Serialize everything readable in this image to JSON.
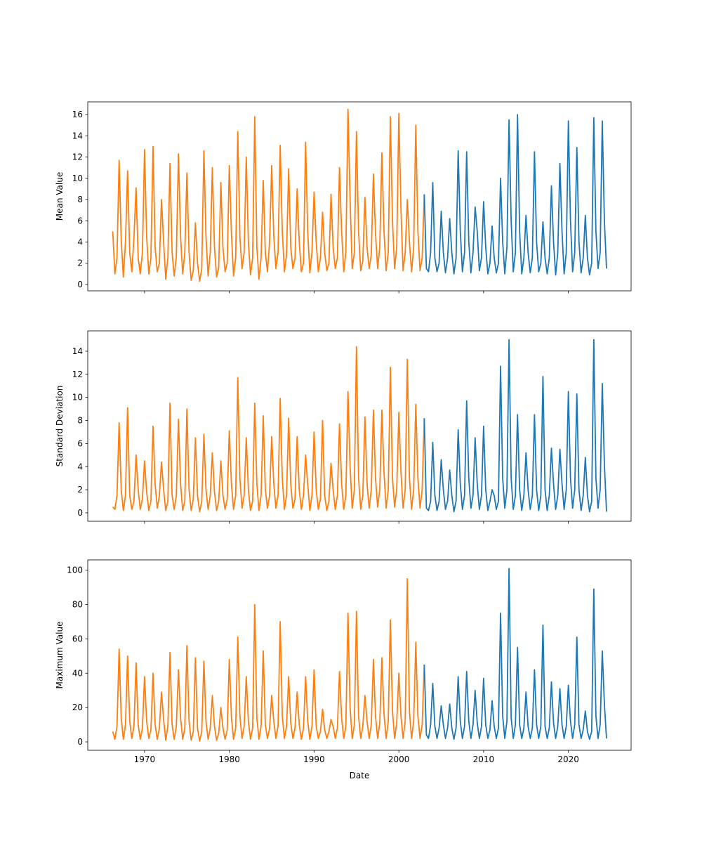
{
  "chart_data": {
    "type": "line",
    "xlabel": "Date",
    "xlim": [
      1963.3,
      2027.4
    ],
    "xticks": [
      1970,
      1980,
      1990,
      2000,
      2010,
      2020
    ],
    "xtick_labels": [
      "1970",
      "1980",
      "1990",
      "2000",
      "2010",
      "2020"
    ],
    "grid": false,
    "colors": {
      "orange": "#ff7f0e",
      "blue": "#1f77b4"
    },
    "panels": [
      {
        "ylabel": "Mean Value",
        "ylim": [
          -0.6,
          17.2
        ],
        "yticks": [
          0,
          2,
          4,
          6,
          8,
          10,
          12,
          14,
          16
        ],
        "ytick_labels": [
          "0",
          "2",
          "4",
          "6",
          "8",
          "10",
          "12",
          "14",
          "16"
        ],
        "series": [
          {
            "color": "#ff7f0e",
            "start": 1966.25,
            "end": 2003.0,
            "values": [
              5,
              1,
              2.5,
              11.7,
              4.2,
              0.7,
              4,
              10.7,
              3,
              1.2,
              4.4,
              9.1,
              2.5,
              1,
              3,
              12.7,
              4.5,
              1,
              2.5,
              13,
              3.5,
              1.2,
              2,
              8,
              4,
              0.5,
              2.5,
              11.4,
              3,
              0.8,
              2.6,
              12.3,
              4.5,
              1,
              3,
              10.5,
              3,
              0.4,
              1.3,
              5.8,
              2,
              0.3,
              1.5,
              12.6,
              4.5,
              0.8,
              3,
              11,
              3.5,
              0.7,
              1.6,
              9.6,
              3.5,
              1.2,
              2,
              11.2,
              4.8,
              0.8,
              2.5,
              14.4,
              4.5,
              1.5,
              3,
              12,
              4,
              0.9,
              2.5,
              15.8,
              3.5,
              0.5,
              2.5,
              9.8,
              3,
              1.2,
              4,
              11.2,
              4.5,
              1.5,
              3,
              13.1,
              5,
              1.2,
              2.8,
              10.9,
              3.5,
              1.5,
              2.5,
              9,
              4,
              1.2,
              2,
              13.4,
              5,
              1.1,
              3,
              8.7,
              4,
              1.2,
              2.5,
              6.8,
              3,
              1.3,
              2,
              8.5,
              3.5,
              1.5,
              2.5,
              11,
              5,
              1.2,
              3,
              16.5,
              8,
              1.5,
              3,
              14.4,
              5,
              1.3,
              2.2,
              8.2,
              3.5,
              1.5,
              2.8,
              10.4,
              4.8,
              1.5,
              3.5,
              12.4,
              5,
              1.3,
              3,
              15.8,
              6,
              1.5,
              3.5,
              16.1,
              7,
              1.3,
              3,
              8,
              4,
              1.2,
              3.5,
              15,
              5,
              1.3,
              2.5,
              8.5
            ]
          },
          {
            "color": "#1f77b4",
            "start": 2003.0,
            "end": 2024.5,
            "values": [
              8.5,
              1.5,
              1.2,
              3,
              9.6,
              2.5,
              1.2,
              2,
              6.9,
              3,
              1.1,
              2.5,
              6.2,
              3,
              1,
              2.5,
              12.6,
              5,
              1.2,
              3,
              12.5,
              4,
              1.1,
              3,
              7.3,
              5,
              1.3,
              2.5,
              7.8,
              3.5,
              1,
              2,
              5.5,
              2.5,
              1.1,
              2,
              10,
              4,
              1,
              3.5,
              15.5,
              6,
              1.2,
              3,
              16,
              5,
              1,
              2.5,
              6.5,
              3,
              1.1,
              2.5,
              12.5,
              4,
              1.2,
              2,
              5.9,
              2.5,
              1,
              2.5,
              9.3,
              4,
              0.9,
              3,
              11.4,
              5,
              1,
              3,
              15.4,
              6,
              1.2,
              3,
              12.9,
              4,
              1.1,
              2.5,
              6.5,
              2.5,
              0.9,
              2,
              15.7,
              5,
              1.5,
              3,
              15.4,
              6,
              1.5
            ]
          }
        ]
      },
      {
        "ylabel": "Standard Deviation",
        "ylim": [
          -0.73,
          15.76
        ],
        "yticks": [
          0,
          2,
          4,
          6,
          8,
          10,
          12,
          14
        ],
        "ytick_labels": [
          "0",
          "2",
          "4",
          "6",
          "8",
          "10",
          "12",
          "14"
        ],
        "series": [
          {
            "color": "#ff7f0e",
            "start": 1966.25,
            "end": 2003.0,
            "values": [
              0.5,
              0.3,
              1.5,
              7.8,
              2,
              0.2,
              1.5,
              9.1,
              1.5,
              0.3,
              1,
              5,
              2,
              0.3,
              1.2,
              4.5,
              1.8,
              0.2,
              1,
              7.5,
              2.5,
              0.4,
              1.5,
              4.4,
              2,
              0.2,
              1,
              9.5,
              1.5,
              0.3,
              1.5,
              8.1,
              2.5,
              0.2,
              1,
              9,
              2,
              0.2,
              1.2,
              6.5,
              1.5,
              0.1,
              1,
              6.8,
              2,
              0.3,
              1.5,
              5.2,
              1.8,
              0.2,
              1,
              4.5,
              1.5,
              0.3,
              1.2,
              7.1,
              2.5,
              0.3,
              1.5,
              11.7,
              3,
              0.4,
              1.5,
              6.5,
              2,
              0.2,
              1,
              9.5,
              2.5,
              0.2,
              1.5,
              8.4,
              2,
              0.4,
              1.5,
              6.6,
              2.5,
              0.4,
              1.5,
              9.9,
              3,
              0.3,
              1.5,
              8.2,
              2.5,
              0.4,
              1.2,
              6.6,
              2,
              0.3,
              1.5,
              5,
              2.5,
              0.2,
              1.5,
              7,
              2,
              0.3,
              1.2,
              8,
              1.5,
              0.2,
              1,
              4.3,
              2,
              0.3,
              1.5,
              7.7,
              2.5,
              0.3,
              1.5,
              10.5,
              4,
              0.4,
              2,
              14.4,
              3,
              0.3,
              1.5,
              8.3,
              2.5,
              0.4,
              2,
              8.9,
              3,
              0.5,
              2,
              8.9,
              3.5,
              0.4,
              2,
              12.6,
              3,
              0.5,
              2,
              8.7,
              3.5,
              0.4,
              2,
              13.3,
              3,
              0.3,
              2,
              9.4,
              3,
              0.4,
              2,
              8.2
            ]
          },
          {
            "color": "#1f77b4",
            "start": 2003.0,
            "end": 2024.5,
            "values": [
              8.2,
              0.4,
              0.2,
              1,
              6.1,
              1.5,
              0.2,
              1,
              4.6,
              2,
              0.3,
              1,
              3.7,
              1.5,
              0.1,
              1,
              7.2,
              2.5,
              0.3,
              1.5,
              9.7,
              3,
              0.4,
              1.5,
              6.5,
              2.5,
              0.3,
              1.5,
              7.5,
              2,
              0.2,
              1,
              2,
              1.5,
              0.3,
              1,
              12.7,
              3,
              0.4,
              2,
              15,
              3,
              0.3,
              1.5,
              8.5,
              2,
              0.2,
              1.5,
              5.2,
              2,
              0.3,
              1.5,
              8.5,
              2,
              0.2,
              1.5,
              11.8,
              2,
              0.2,
              1.5,
              5.6,
              2.5,
              0.3,
              1.5,
              5.5,
              2.5,
              0.3,
              2,
              10.5,
              3,
              0.4,
              2,
              10.3,
              2,
              0.2,
              1.5,
              4.8,
              1.5,
              0.1,
              1,
              15,
              3,
              0.4,
              2,
              11.2,
              4.2,
              0.1
            ]
          }
        ]
      },
      {
        "ylabel": "Maximum Value",
        "ylim": [
          -4.9,
          106
        ],
        "yticks": [
          0,
          20,
          40,
          60,
          80,
          100
        ],
        "ytick_labels": [
          "0",
          "20",
          "40",
          "60",
          "80",
          "100"
        ],
        "series": [
          {
            "color": "#ff7f0e",
            "start": 1966.25,
            "end": 2003.0,
            "values": [
              6,
              1.5,
              9,
              54,
              14,
              1.5,
              10,
              50,
              12,
              2,
              9,
              46,
              10,
              1.5,
              8,
              38,
              12,
              2,
              7,
              40,
              10,
              1.5,
              8,
              29,
              13,
              1,
              9,
              52,
              10,
              1.5,
              9,
              42,
              14,
              1.5,
              8,
              56,
              12,
              1,
              6,
              49,
              8,
              0.5,
              6,
              47,
              12,
              1.5,
              8,
              27,
              9,
              1,
              5,
              20,
              8,
              1.5,
              7,
              48,
              14,
              1.5,
              8,
              61,
              15,
              2,
              9,
              38,
              12,
              1.5,
              8,
              80,
              14,
              1.5,
              9,
              53,
              10,
              2,
              8,
              27,
              12,
              2,
              9,
              70,
              15,
              2,
              9,
              38,
              11,
              2,
              8,
              29,
              10,
              1.5,
              8,
              38,
              12,
              1.5,
              9,
              42,
              9,
              2,
              6,
              19,
              7,
              2,
              6,
              13,
              9,
              2,
              8,
              41,
              14,
              2,
              9,
              75,
              20,
              2,
              10,
              76,
              15,
              2,
              9,
              27,
              12,
              2,
              10,
              48,
              15,
              2,
              11,
              49,
              16,
              2,
              12,
              71,
              18,
              2,
              11,
              40,
              15,
              2,
              12,
              95,
              18,
              2,
              12,
              58,
              15,
              2,
              10,
              45
            ]
          },
          {
            "color": "#1f77b4",
            "start": 2003.0,
            "end": 2024.5,
            "values": [
              45,
              4,
              2,
              10,
              34,
              9,
              2,
              8,
              21,
              10,
              2,
              8,
              22,
              8,
              1.5,
              8,
              38,
              12,
              2,
              9,
              41,
              12,
              2,
              10,
              30,
              11,
              2,
              9,
              37,
              10,
              2,
              7,
              24,
              9,
              2,
              8,
              75,
              15,
              2,
              12,
              101,
              14,
              2,
              10,
              55,
              10,
              2,
              8,
              29,
              9,
              2,
              8,
              42,
              10,
              2,
              9,
              68,
              9,
              2,
              8,
              35,
              11,
              2,
              9,
              31,
              10,
              2,
              9,
              33,
              12,
              2,
              10,
              61,
              10,
              2,
              7,
              18,
              6,
              1.5,
              6,
              89,
              15,
              2,
              10,
              53,
              22,
              2
            ]
          }
        ]
      }
    ]
  }
}
